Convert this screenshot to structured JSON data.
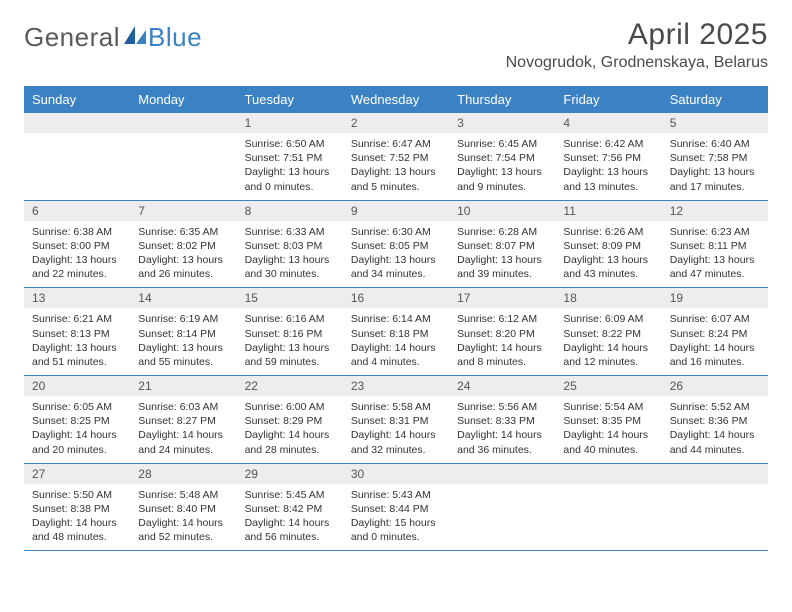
{
  "logo": {
    "text_general": "General",
    "text_blue": "Blue"
  },
  "title": "April 2025",
  "location": "Novogrudok, Grodnenskaya, Belarus",
  "colors": {
    "header_bg": "#3b82c4",
    "header_text": "#ffffff",
    "daynum_bg": "#ededed",
    "body_text": "#333333",
    "row_border": "#3b82c4",
    "logo_gray": "#5a5a5a",
    "logo_blue": "#3b82c4"
  },
  "day_headers": [
    "Sunday",
    "Monday",
    "Tuesday",
    "Wednesday",
    "Thursday",
    "Friday",
    "Saturday"
  ],
  "weeks": [
    [
      {
        "n": "",
        "sunrise": "",
        "sunset": "",
        "daylight": ""
      },
      {
        "n": "",
        "sunrise": "",
        "sunset": "",
        "daylight": ""
      },
      {
        "n": "1",
        "sunrise": "Sunrise: 6:50 AM",
        "sunset": "Sunset: 7:51 PM",
        "daylight": "Daylight: 13 hours and 0 minutes."
      },
      {
        "n": "2",
        "sunrise": "Sunrise: 6:47 AM",
        "sunset": "Sunset: 7:52 PM",
        "daylight": "Daylight: 13 hours and 5 minutes."
      },
      {
        "n": "3",
        "sunrise": "Sunrise: 6:45 AM",
        "sunset": "Sunset: 7:54 PM",
        "daylight": "Daylight: 13 hours and 9 minutes."
      },
      {
        "n": "4",
        "sunrise": "Sunrise: 6:42 AM",
        "sunset": "Sunset: 7:56 PM",
        "daylight": "Daylight: 13 hours and 13 minutes."
      },
      {
        "n": "5",
        "sunrise": "Sunrise: 6:40 AM",
        "sunset": "Sunset: 7:58 PM",
        "daylight": "Daylight: 13 hours and 17 minutes."
      }
    ],
    [
      {
        "n": "6",
        "sunrise": "Sunrise: 6:38 AM",
        "sunset": "Sunset: 8:00 PM",
        "daylight": "Daylight: 13 hours and 22 minutes."
      },
      {
        "n": "7",
        "sunrise": "Sunrise: 6:35 AM",
        "sunset": "Sunset: 8:02 PM",
        "daylight": "Daylight: 13 hours and 26 minutes."
      },
      {
        "n": "8",
        "sunrise": "Sunrise: 6:33 AM",
        "sunset": "Sunset: 8:03 PM",
        "daylight": "Daylight: 13 hours and 30 minutes."
      },
      {
        "n": "9",
        "sunrise": "Sunrise: 6:30 AM",
        "sunset": "Sunset: 8:05 PM",
        "daylight": "Daylight: 13 hours and 34 minutes."
      },
      {
        "n": "10",
        "sunrise": "Sunrise: 6:28 AM",
        "sunset": "Sunset: 8:07 PM",
        "daylight": "Daylight: 13 hours and 39 minutes."
      },
      {
        "n": "11",
        "sunrise": "Sunrise: 6:26 AM",
        "sunset": "Sunset: 8:09 PM",
        "daylight": "Daylight: 13 hours and 43 minutes."
      },
      {
        "n": "12",
        "sunrise": "Sunrise: 6:23 AM",
        "sunset": "Sunset: 8:11 PM",
        "daylight": "Daylight: 13 hours and 47 minutes."
      }
    ],
    [
      {
        "n": "13",
        "sunrise": "Sunrise: 6:21 AM",
        "sunset": "Sunset: 8:13 PM",
        "daylight": "Daylight: 13 hours and 51 minutes."
      },
      {
        "n": "14",
        "sunrise": "Sunrise: 6:19 AM",
        "sunset": "Sunset: 8:14 PM",
        "daylight": "Daylight: 13 hours and 55 minutes."
      },
      {
        "n": "15",
        "sunrise": "Sunrise: 6:16 AM",
        "sunset": "Sunset: 8:16 PM",
        "daylight": "Daylight: 13 hours and 59 minutes."
      },
      {
        "n": "16",
        "sunrise": "Sunrise: 6:14 AM",
        "sunset": "Sunset: 8:18 PM",
        "daylight": "Daylight: 14 hours and 4 minutes."
      },
      {
        "n": "17",
        "sunrise": "Sunrise: 6:12 AM",
        "sunset": "Sunset: 8:20 PM",
        "daylight": "Daylight: 14 hours and 8 minutes."
      },
      {
        "n": "18",
        "sunrise": "Sunrise: 6:09 AM",
        "sunset": "Sunset: 8:22 PM",
        "daylight": "Daylight: 14 hours and 12 minutes."
      },
      {
        "n": "19",
        "sunrise": "Sunrise: 6:07 AM",
        "sunset": "Sunset: 8:24 PM",
        "daylight": "Daylight: 14 hours and 16 minutes."
      }
    ],
    [
      {
        "n": "20",
        "sunrise": "Sunrise: 6:05 AM",
        "sunset": "Sunset: 8:25 PM",
        "daylight": "Daylight: 14 hours and 20 minutes."
      },
      {
        "n": "21",
        "sunrise": "Sunrise: 6:03 AM",
        "sunset": "Sunset: 8:27 PM",
        "daylight": "Daylight: 14 hours and 24 minutes."
      },
      {
        "n": "22",
        "sunrise": "Sunrise: 6:00 AM",
        "sunset": "Sunset: 8:29 PM",
        "daylight": "Daylight: 14 hours and 28 minutes."
      },
      {
        "n": "23",
        "sunrise": "Sunrise: 5:58 AM",
        "sunset": "Sunset: 8:31 PM",
        "daylight": "Daylight: 14 hours and 32 minutes."
      },
      {
        "n": "24",
        "sunrise": "Sunrise: 5:56 AM",
        "sunset": "Sunset: 8:33 PM",
        "daylight": "Daylight: 14 hours and 36 minutes."
      },
      {
        "n": "25",
        "sunrise": "Sunrise: 5:54 AM",
        "sunset": "Sunset: 8:35 PM",
        "daylight": "Daylight: 14 hours and 40 minutes."
      },
      {
        "n": "26",
        "sunrise": "Sunrise: 5:52 AM",
        "sunset": "Sunset: 8:36 PM",
        "daylight": "Daylight: 14 hours and 44 minutes."
      }
    ],
    [
      {
        "n": "27",
        "sunrise": "Sunrise: 5:50 AM",
        "sunset": "Sunset: 8:38 PM",
        "daylight": "Daylight: 14 hours and 48 minutes."
      },
      {
        "n": "28",
        "sunrise": "Sunrise: 5:48 AM",
        "sunset": "Sunset: 8:40 PM",
        "daylight": "Daylight: 14 hours and 52 minutes."
      },
      {
        "n": "29",
        "sunrise": "Sunrise: 5:45 AM",
        "sunset": "Sunset: 8:42 PM",
        "daylight": "Daylight: 14 hours and 56 minutes."
      },
      {
        "n": "30",
        "sunrise": "Sunrise: 5:43 AM",
        "sunset": "Sunset: 8:44 PM",
        "daylight": "Daylight: 15 hours and 0 minutes."
      },
      {
        "n": "",
        "sunrise": "",
        "sunset": "",
        "daylight": ""
      },
      {
        "n": "",
        "sunrise": "",
        "sunset": "",
        "daylight": ""
      },
      {
        "n": "",
        "sunrise": "",
        "sunset": "",
        "daylight": ""
      }
    ]
  ]
}
